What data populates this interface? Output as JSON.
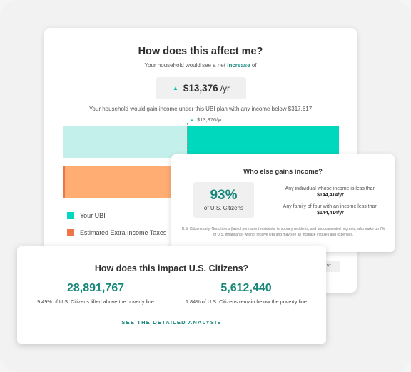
{
  "main": {
    "title": "How does this affect me?",
    "subtitle_prefix": "Your household would see a net",
    "subtitle_highlight": "increase",
    "subtitle_suffix": "of",
    "amount": "$13,376",
    "amount_unit": "/yr",
    "gain_line": "Your household would gain income under this UBI plan with any income below $317,617",
    "marker_label": "$13,376/yr",
    "legend": [
      {
        "label": "Your UBI",
        "color": "#00d8be"
      },
      {
        "label": "Estimated Extra Income Taxes",
        "color": "#f0744a"
      }
    ],
    "clipped_text": "yr"
  },
  "who": {
    "title": "Who else gains income?",
    "percent": "93%",
    "percent_label": "of U.S. Citizens",
    "line1_prefix": "Any individual whose income is less than",
    "line1_value": "$144,414/yr",
    "line2_prefix": "Any family of four with an income less than",
    "line2_value": "$144,414/yr",
    "footnote": "U.S. Citizens only. Noncitizens (lawful permanent residents, temporary residents, and undocumented migrants, who make up 7% of U.S. inhabitants) will not receive UBI and may see an increase in taxes and expenses."
  },
  "impact": {
    "title": "How does this impact U.S. Citizens?",
    "stat1_value": "28,891,767",
    "stat1_desc": "9.49% of U.S. Citizens lifted above the poverty line",
    "stat2_value": "5,612,440",
    "stat2_desc": "1.84% of U.S. Citizens remain below the poverty line",
    "cta": "SEE THE DETAILED ANALYSIS"
  },
  "colors": {
    "accent": "#17877a",
    "teal": "#00d8be",
    "teal_light": "#c3f0ea",
    "orange": "#ffad73"
  }
}
